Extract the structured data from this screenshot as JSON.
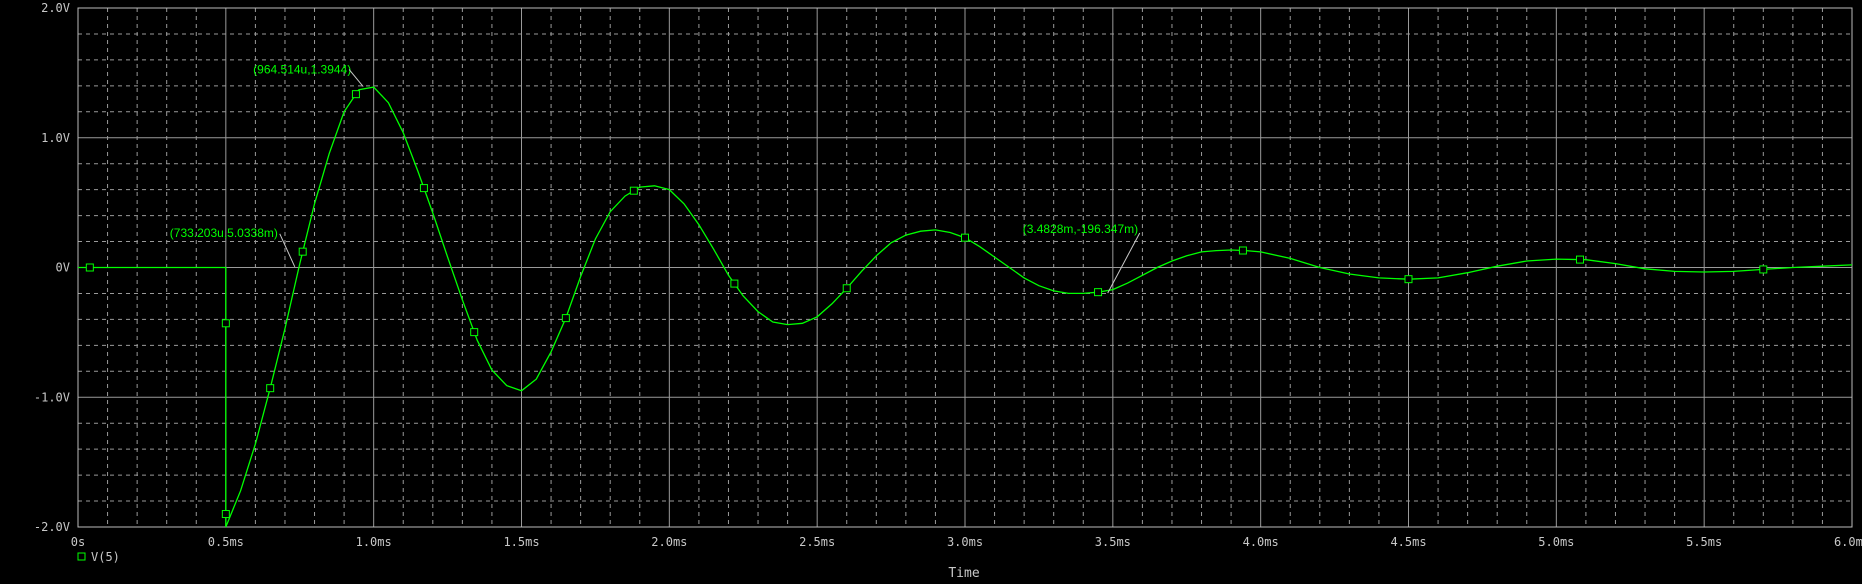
{
  "colors": {
    "background": "#000000",
    "grid": "#9a9a9a",
    "trace": "#00ff00",
    "text": "#c8c8c8"
  },
  "chart_data": {
    "type": "line",
    "xlabel": "Time",
    "ylabel": "",
    "xlim": [
      0,
      0.006
    ],
    "ylim": [
      -2.0,
      2.0
    ],
    "grid": true,
    "legend_position": "bottom-left",
    "x_tick_labels": [
      "0s",
      "0.5ms",
      "1.0ms",
      "1.5ms",
      "2.0ms",
      "2.5ms",
      "3.0ms",
      "3.5ms",
      "4.0ms",
      "4.5ms",
      "5.0ms",
      "5.5ms",
      "6.0ms"
    ],
    "x_ticks": [
      0,
      0.0005,
      0.001,
      0.0015,
      0.002,
      0.0025,
      0.003,
      0.0035,
      0.004,
      0.0045,
      0.005,
      0.0055,
      0.006
    ],
    "y_tick_labels": [
      "2.0V",
      "1.0V",
      "0V",
      "-1.0V",
      "-2.0V"
    ],
    "y_ticks": [
      2.0,
      1.0,
      0,
      -1.0,
      -2.0
    ],
    "series": [
      {
        "name": "V(5)",
        "color": "#00ff00",
        "marker": "square",
        "x": [
          0,
          0.0004,
          0.0005,
          0.0005,
          0.00055,
          0.0006,
          0.00065,
          0.0007,
          0.00075,
          0.0008,
          0.00085,
          0.0009,
          0.00095,
          0.001,
          0.00105,
          0.0011,
          0.00115,
          0.0012,
          0.00125,
          0.0013,
          0.00135,
          0.0014,
          0.00145,
          0.0015,
          0.00155,
          0.0016,
          0.00165,
          0.0017,
          0.00175,
          0.0018,
          0.00185,
          0.0019,
          0.00195,
          0.002,
          0.00205,
          0.0021,
          0.00215,
          0.0022,
          0.00225,
          0.0023,
          0.00235,
          0.0024,
          0.00245,
          0.0025,
          0.00255,
          0.0026,
          0.00265,
          0.0027,
          0.00275,
          0.0028,
          0.00285,
          0.0029,
          0.00295,
          0.003,
          0.00305,
          0.0031,
          0.00315,
          0.0032,
          0.00325,
          0.0033,
          0.00335,
          0.0034,
          0.00345,
          0.0035,
          0.00355,
          0.0036,
          0.00365,
          0.0037,
          0.00375,
          0.0038,
          0.00385,
          0.0039,
          0.00395,
          0.004,
          0.0041,
          0.0042,
          0.0043,
          0.0044,
          0.0045,
          0.0046,
          0.0047,
          0.0048,
          0.0049,
          0.005,
          0.0051,
          0.0052,
          0.0053,
          0.0054,
          0.0055,
          0.0056,
          0.0057,
          0.0058,
          0.0059,
          0.006
        ],
        "y": [
          0,
          0,
          0,
          -2.0,
          -1.72,
          -1.36,
          -0.93,
          -0.47,
          0.03,
          0.49,
          0.88,
          1.2,
          1.37,
          1.39,
          1.27,
          1.04,
          0.74,
          0.42,
          0.08,
          -0.25,
          -0.56,
          -0.79,
          -0.91,
          -0.95,
          -0.86,
          -0.65,
          -0.39,
          -0.07,
          0.22,
          0.43,
          0.55,
          0.62,
          0.63,
          0.6,
          0.49,
          0.33,
          0.14,
          -0.06,
          -0.22,
          -0.34,
          -0.42,
          -0.44,
          -0.43,
          -0.38,
          -0.28,
          -0.16,
          -0.03,
          0.09,
          0.19,
          0.25,
          0.28,
          0.29,
          0.27,
          0.23,
          0.16,
          0.08,
          0.0,
          -0.08,
          -0.14,
          -0.18,
          -0.2,
          -0.2,
          -0.19,
          -0.17,
          -0.12,
          -0.06,
          0.0,
          0.05,
          0.09,
          0.12,
          0.13,
          0.135,
          0.13,
          0.12,
          0.07,
          0.0,
          -0.05,
          -0.08,
          -0.09,
          -0.08,
          -0.04,
          0.01,
          0.05,
          0.065,
          0.06,
          0.03,
          -0.01,
          -0.03,
          -0.035,
          -0.03,
          -0.015,
          0.0,
          0.01,
          0.02
        ],
        "markers_x": [
          4e-05,
          0.0005,
          0.0005,
          0.00065,
          0.00076,
          0.00094,
          0.00117,
          0.00134,
          0.00165,
          0.00188,
          0.00222,
          0.0026,
          0.003,
          0.00345,
          0.00394,
          0.0045,
          0.00508,
          0.0057
        ]
      }
    ],
    "annotations": [
      {
        "label": "(964.514u,1.3944)",
        "x": 0.000964514,
        "y": 1.3944
      },
      {
        "label": "(733.203u,5.0338m)",
        "x": 0.000733203,
        "y": 0.0050338
      },
      {
        "label": "(3.4828m,-196.347m)",
        "x": 0.0034828,
        "y": -0.196347
      }
    ]
  }
}
